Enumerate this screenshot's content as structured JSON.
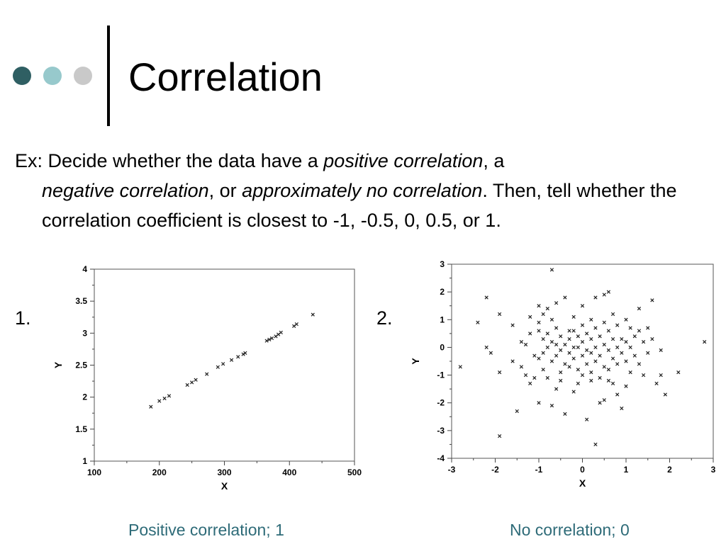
{
  "slide": {
    "title": "Correlation",
    "bullet_colors": [
      "#2f5f63",
      "#97c9cc",
      "#c9c9c9"
    ],
    "body": {
      "prefix": "Ex: Decide whether the data have a ",
      "em1": "positive correlation",
      "sep1": ", a",
      "em2": "negative correlation",
      "sep2": ", or ",
      "em3": "approximately no correlation",
      "rest": ". Then, tell whether the correlation coefficient is closest to -1, -0.5, 0, 0.5, or 1."
    },
    "item1_label": "1.",
    "item2_label": "2.",
    "caption1": "Positive correlation; 1",
    "caption2": "No correlation; 0",
    "caption_color": "#2e6b78"
  },
  "chart_data": [
    {
      "type": "scatter",
      "title": "",
      "xlabel": "X",
      "ylabel": "Y",
      "xlim": [
        100,
        500
      ],
      "ylim": [
        1,
        4
      ],
      "x_ticks": [
        "100",
        "200",
        "300",
        "400",
        "500"
      ],
      "y_ticks": [
        "1",
        "1.5",
        "2",
        "2.5",
        "3",
        "3.5",
        "4"
      ],
      "grid": false,
      "marker": "x",
      "points": [
        [
          187,
          1.85
        ],
        [
          200,
          1.94
        ],
        [
          208,
          1.98
        ],
        [
          215,
          2.02
        ],
        [
          243,
          2.19
        ],
        [
          250,
          2.23
        ],
        [
          256,
          2.27
        ],
        [
          273,
          2.36
        ],
        [
          290,
          2.47
        ],
        [
          298,
          2.52
        ],
        [
          311,
          2.58
        ],
        [
          321,
          2.63
        ],
        [
          329,
          2.67
        ],
        [
          332,
          2.69
        ],
        [
          365,
          2.88
        ],
        [
          369,
          2.9
        ],
        [
          373,
          2.92
        ],
        [
          379,
          2.95
        ],
        [
          383,
          2.98
        ],
        [
          387,
          3.01
        ],
        [
          407,
          3.11
        ],
        [
          411,
          3.14
        ],
        [
          436,
          3.29
        ]
      ]
    },
    {
      "type": "scatter",
      "title": "",
      "xlabel": "X",
      "ylabel": "Y",
      "xlim": [
        -3,
        3
      ],
      "ylim": [
        -4,
        3
      ],
      "x_ticks": [
        "-3",
        "-2",
        "-1",
        "0",
        "1",
        "2",
        "3"
      ],
      "y_ticks": [
        "-4",
        "-3",
        "-2",
        "-1",
        "0",
        "1",
        "2",
        "3"
      ],
      "grid": false,
      "marker": "x",
      "points": [
        [
          -0.7,
          2.8
        ],
        [
          -2.2,
          1.8
        ],
        [
          -1.9,
          1.2
        ],
        [
          -2.4,
          0.9
        ],
        [
          -2.2,
          0.0
        ],
        [
          -2.1,
          -0.2
        ],
        [
          -2.8,
          -0.7
        ],
        [
          -1.9,
          -0.9
        ],
        [
          -1.9,
          -3.2
        ],
        [
          -1.6,
          0.8
        ],
        [
          -1.6,
          -0.5
        ],
        [
          -1.5,
          -2.3
        ],
        [
          -1.4,
          0.2
        ],
        [
          -1.4,
          -0.7
        ],
        [
          -1.3,
          0.1
        ],
        [
          -1.3,
          -1.0
        ],
        [
          -1.2,
          -1.3
        ],
        [
          -1.2,
          0.5
        ],
        [
          -1.1,
          -1.1
        ],
        [
          -1.1,
          -0.3
        ],
        [
          -1.0,
          1.5
        ],
        [
          -1.0,
          0.9
        ],
        [
          -1.0,
          0.6
        ],
        [
          -1.0,
          -0.4
        ],
        [
          -1.0,
          -2.0
        ],
        [
          -0.9,
          1.2
        ],
        [
          -0.9,
          0.3
        ],
        [
          -0.9,
          -0.8
        ],
        [
          -0.8,
          1.4
        ],
        [
          -0.8,
          0.5
        ],
        [
          -0.8,
          0.0
        ],
        [
          -0.8,
          -1.1
        ],
        [
          -0.7,
          1.0
        ],
        [
          -0.7,
          0.2
        ],
        [
          -0.7,
          -0.5
        ],
        [
          -0.7,
          -2.1
        ],
        [
          -0.6,
          1.6
        ],
        [
          -0.6,
          0.7
        ],
        [
          -0.6,
          -0.3
        ],
        [
          -0.6,
          -1.5
        ],
        [
          -0.5,
          0.4
        ],
        [
          -0.5,
          -0.1
        ],
        [
          -0.5,
          -0.9
        ],
        [
          -0.5,
          -1.2
        ],
        [
          -0.4,
          1.8
        ],
        [
          -0.4,
          0.1
        ],
        [
          -0.4,
          -0.6
        ],
        [
          -0.4,
          -2.4
        ],
        [
          -0.3,
          0.6
        ],
        [
          -0.3,
          0.3
        ],
        [
          -0.3,
          -0.2
        ],
        [
          -0.3,
          -0.7
        ],
        [
          -0.2,
          1.1
        ],
        [
          -0.2,
          0.6
        ],
        [
          -0.2,
          0.0
        ],
        [
          -0.2,
          -0.4
        ],
        [
          -0.2,
          -1.6
        ],
        [
          -0.1,
          0.4
        ],
        [
          -0.1,
          -0.8
        ],
        [
          -0.1,
          -1.3
        ],
        [
          0.0,
          1.5
        ],
        [
          0.0,
          0.8
        ],
        [
          0.0,
          0.2
        ],
        [
          0.0,
          -0.3
        ],
        [
          0.0,
          -1.0
        ],
        [
          0.1,
          0.5
        ],
        [
          0.1,
          -0.1
        ],
        [
          0.1,
          -0.6
        ],
        [
          0.1,
          -2.6
        ],
        [
          0.2,
          1.0
        ],
        [
          0.2,
          0.3
        ],
        [
          0.2,
          -0.2
        ],
        [
          0.2,
          -0.9
        ],
        [
          0.3,
          1.8
        ],
        [
          0.3,
          0.7
        ],
        [
          0.3,
          0.0
        ],
        [
          0.3,
          -0.5
        ],
        [
          0.3,
          -3.5
        ],
        [
          0.4,
          0.4
        ],
        [
          0.4,
          -0.3
        ],
        [
          0.4,
          -1.1
        ],
        [
          0.4,
          -2.0
        ],
        [
          0.5,
          1.9
        ],
        [
          0.5,
          0.9
        ],
        [
          0.5,
          0.1
        ],
        [
          0.5,
          -0.7
        ],
        [
          0.5,
          -1.9
        ],
        [
          0.6,
          2.0
        ],
        [
          0.6,
          0.6
        ],
        [
          0.6,
          -0.1
        ],
        [
          0.6,
          -0.8
        ],
        [
          0.7,
          1.2
        ],
        [
          0.7,
          0.3
        ],
        [
          0.7,
          -0.4
        ],
        [
          0.7,
          -1.3
        ],
        [
          0.8,
          0.8
        ],
        [
          0.8,
          0.0
        ],
        [
          0.8,
          -0.6
        ],
        [
          0.8,
          -1.7
        ],
        [
          0.9,
          0.3
        ],
        [
          0.9,
          -0.2
        ],
        [
          0.9,
          -2.2
        ],
        [
          1.0,
          1.0
        ],
        [
          1.0,
          0.2
        ],
        [
          1.0,
          -0.5
        ],
        [
          1.0,
          -1.4
        ],
        [
          1.1,
          0.7
        ],
        [
          1.1,
          0.0
        ],
        [
          1.1,
          -0.9
        ],
        [
          1.2,
          0.4
        ],
        [
          1.2,
          -0.3
        ],
        [
          1.3,
          1.4
        ],
        [
          1.3,
          0.6
        ],
        [
          1.3,
          -0.6
        ],
        [
          1.4,
          0.2
        ],
        [
          1.4,
          -1.0
        ],
        [
          1.5,
          0.7
        ],
        [
          1.5,
          -0.2
        ],
        [
          1.6,
          1.7
        ],
        [
          1.6,
          0.3
        ],
        [
          1.7,
          -1.3
        ],
        [
          1.8,
          -0.1
        ],
        [
          1.8,
          -1.0
        ],
        [
          1.9,
          -1.7
        ],
        [
          2.2,
          -0.9
        ],
        [
          2.8,
          0.2
        ],
        [
          -1.2,
          1.1
        ],
        [
          -0.9,
          -0.2
        ],
        [
          -0.6,
          0.1
        ],
        [
          -0.1,
          0.0
        ],
        [
          0.2,
          -1.2
        ],
        [
          0.6,
          -1.2
        ]
      ]
    }
  ]
}
